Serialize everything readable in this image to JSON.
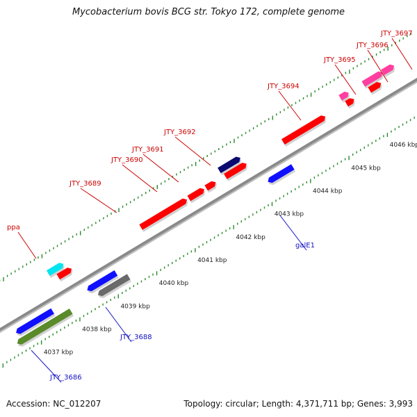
{
  "title": "Mycobacterium bovis BCG str. Tokyo 172, complete genome",
  "footer": {
    "accession": "Accession: NC_012207",
    "topology": "Topology: circular; Length: 4,371,711 bp; Genes: 3,993"
  },
  "colors": {
    "backbone": "#8a8a8a",
    "tick": "#2a8a2a",
    "red_gene": "#ff0000",
    "red_label": "#cc0000",
    "blue_gene": "#1010ff",
    "blue_label": "#1010c0",
    "cyan_gene": "#00e5f0",
    "navy_gene": "#0a0a70",
    "gray_gene": "#6a6a6a",
    "olive_gene": "#5a8a2a",
    "magenta_gene": "#ff3ea0"
  },
  "scale": {
    "unit": "kbp",
    "labels": [
      "4037 kbp",
      "4038 kbp",
      "4039 kbp",
      "4040 kbp",
      "4041 kbp",
      "4042 kbp",
      "4043 kbp",
      "4044 kbp",
      "4045 kbp",
      "4046 kbp"
    ]
  },
  "genes": [
    {
      "name": "JTY_3686",
      "color": "blue_gene",
      "label_color": "blue_label",
      "strand": "minus",
      "start_kbp": 4036.6,
      "end_kbp": 4037.55
    },
    {
      "name": "",
      "color": "olive_gene",
      "label_color": "",
      "strand": "minus_outer",
      "start_kbp": 4036.5,
      "end_kbp": 4037.9
    },
    {
      "name": "JTY_3688",
      "color": "blue_gene",
      "label_color": "blue_label",
      "strand": "minus",
      "start_kbp": 4038.45,
      "end_kbp": 4039.2
    },
    {
      "name": "",
      "color": "gray_gene",
      "label_color": "",
      "strand": "minus_outer",
      "start_kbp": 4038.6,
      "end_kbp": 4039.4
    },
    {
      "name": "ppa",
      "color": "cyan_gene",
      "label_color": "red_label",
      "strand": "plus_outer",
      "start_kbp": 4037.9,
      "end_kbp": 4038.3
    },
    {
      "name": "",
      "color": "red_gene",
      "label_color": "",
      "strand": "plus",
      "start_kbp": 4038.05,
      "end_kbp": 4038.4
    },
    {
      "name": "JTY_3689",
      "color": "red_gene",
      "label_color": "red_label",
      "strand": "plus",
      "start_kbp": 4040.2,
      "end_kbp": 4041.4
    },
    {
      "name": "JTY_3690",
      "color": "red_gene",
      "label_color": "red_label",
      "strand": "plus",
      "start_kbp": 4041.45,
      "end_kbp": 4041.85
    },
    {
      "name": "JTY_3691",
      "color": "red_gene",
      "label_color": "red_label",
      "strand": "plus",
      "start_kbp": 4041.9,
      "end_kbp": 4042.15
    },
    {
      "name": "JTY_3692",
      "color": "navy_gene",
      "label_color": "red_label",
      "strand": "plus_outer",
      "start_kbp": 4042.35,
      "end_kbp": 4042.9
    },
    {
      "name": "",
      "color": "red_gene",
      "label_color": "",
      "strand": "plus",
      "start_kbp": 4042.4,
      "end_kbp": 4042.95
    },
    {
      "name": "galE1",
      "color": "blue_gene",
      "label_color": "blue_label",
      "strand": "minus",
      "start_kbp": 4043.15,
      "end_kbp": 4043.8
    },
    {
      "name": "JTY_3694",
      "color": "red_gene",
      "label_color": "red_label",
      "strand": "plus",
      "start_kbp": 4043.9,
      "end_kbp": 4045.0
    },
    {
      "name": "JTY_3695",
      "color": "magenta_gene",
      "label_color": "red_label",
      "strand": "plus_outer",
      "start_kbp": 4045.5,
      "end_kbp": 4045.72
    },
    {
      "name": "",
      "color": "red_gene",
      "label_color": "",
      "strand": "plus",
      "start_kbp": 4045.55,
      "end_kbp": 4045.75
    },
    {
      "name": "JTY_3696",
      "color": "magenta_gene",
      "label_color": "red_label",
      "strand": "plus_outer",
      "start_kbp": 4046.1,
      "end_kbp": 4046.6
    },
    {
      "name": "",
      "color": "red_gene",
      "label_color": "",
      "strand": "plus",
      "start_kbp": 4046.15,
      "end_kbp": 4046.45
    },
    {
      "name": "JTY_3697",
      "color": "magenta_gene",
      "label_color": "red_label",
      "strand": "plus_outer",
      "start_kbp": 4046.6,
      "end_kbp": 4046.9
    }
  ]
}
